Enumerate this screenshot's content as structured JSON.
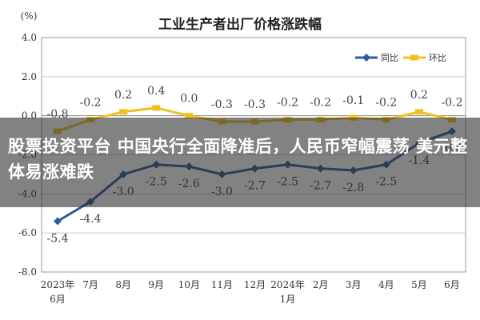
{
  "chart_data": {
    "type": "line",
    "title": "工业生产者出厂价格涨跌幅",
    "unit_label": "(%)",
    "ylim": [
      -8.0,
      4.0
    ],
    "y_ticks": [
      "4.0",
      "2.0",
      "0.0",
      "-2.0",
      "-4.0",
      "-6.0",
      "-8.0"
    ],
    "categories": [
      "2023年6月",
      "7月",
      "8月",
      "9月",
      "10月",
      "11月",
      "12月",
      "2024年1月",
      "2月",
      "3月",
      "4月",
      "5月",
      "6月"
    ],
    "x_ticks": [
      [
        "2023年",
        "6月"
      ],
      [
        "7月"
      ],
      [
        "8月"
      ],
      [
        "9月"
      ],
      [
        "10月"
      ],
      [
        "11月"
      ],
      [
        "12月"
      ],
      [
        "2024年",
        "1月"
      ],
      [
        "2月"
      ],
      [
        "3月"
      ],
      [
        "4月"
      ],
      [
        "5月"
      ],
      [
        "6月"
      ]
    ],
    "legend_position": "top-right",
    "grid": true,
    "series": [
      {
        "name": "同比",
        "color": "#2e5b9a",
        "values": [
          -5.4,
          -4.4,
          -3.0,
          -2.5,
          -2.6,
          -3.0,
          -2.7,
          -2.5,
          -2.7,
          -2.8,
          -2.5,
          -1.4,
          -0.8
        ],
        "labels": [
          "-5.4",
          "-4.4",
          "-3.0",
          "-2.5",
          "-2.6",
          "-3.0",
          "-2.7",
          "-2.5",
          "-2.7",
          "-2.8",
          "-2.5",
          "-1.4",
          "-0.8"
        ]
      },
      {
        "name": "环比",
        "color": "#f2c01e",
        "values": [
          -0.8,
          -0.2,
          0.2,
          0.4,
          0.0,
          -0.3,
          -0.3,
          -0.2,
          -0.2,
          -0.1,
          -0.2,
          0.2,
          -0.2
        ],
        "labels": [
          "-0.8",
          "-0.2",
          "0.2",
          "0.4",
          "0.0",
          "-0.3",
          "-0.3",
          "-0.2",
          "-0.2",
          "-0.1",
          "-0.2",
          "0.2",
          "-0.2"
        ]
      }
    ]
  },
  "overlay": {
    "headline": "股票投资平台 中国央行全面降准后，人民币窄幅震荡 美元整体易涨难跌"
  }
}
